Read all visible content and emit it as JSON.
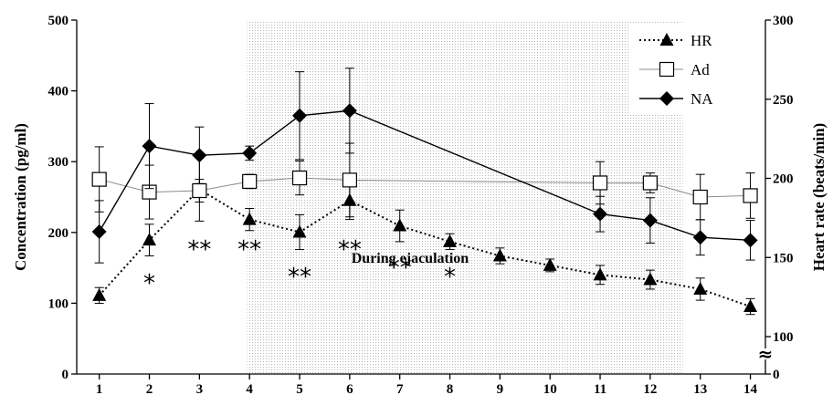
{
  "chart_data": {
    "type": "line",
    "x": [
      1,
      2,
      3,
      4,
      5,
      6,
      11,
      12,
      13,
      14
    ],
    "hr_x": [
      1,
      2,
      3,
      4,
      5,
      6,
      7,
      8,
      9,
      10,
      11,
      12,
      13,
      14
    ],
    "xlim": [
      0.55,
      14.3
    ],
    "xticks": [
      1,
      2,
      3,
      4,
      5,
      6,
      7,
      8,
      9,
      10,
      11,
      12,
      13,
      14
    ],
    "left_axis": {
      "label": "Concentration (pg/ml)",
      "ylim": [
        0,
        500
      ],
      "ticks": [
        "0",
        "100",
        "200",
        "300",
        "400",
        "500"
      ]
    },
    "right_axis": {
      "label": "Heart rate (beats/min)",
      "ticks": [
        "0",
        "100",
        "150",
        "200",
        "250",
        "300"
      ],
      "break_symbol": "≈"
    },
    "shaded_region": {
      "x_start": 3.95,
      "x_end": 12.65,
      "label": "During ejaculation"
    },
    "series": [
      {
        "name": "HR",
        "axis": "right",
        "style": "dotted",
        "marker": "triangle",
        "x": [
          1,
          2,
          3,
          4,
          5,
          6,
          7,
          8,
          9,
          10,
          11,
          12,
          13,
          14
        ],
        "values": [
          126,
          161,
          193,
          174,
          166,
          186,
          170,
          160,
          151,
          145,
          139,
          136,
          130,
          119
        ],
        "err": [
          5,
          10,
          20,
          7,
          11,
          12,
          10,
          5,
          5,
          4,
          6,
          6,
          7,
          5
        ]
      },
      {
        "name": "Ad",
        "axis": "left",
        "style": "thin-gray",
        "marker": "open-square",
        "x": [
          1,
          2,
          3,
          4,
          5,
          6,
          11,
          12,
          13,
          14
        ],
        "values": [
          275,
          257,
          259,
          272,
          277,
          274,
          270,
          270,
          250,
          252
        ],
        "err": [
          46,
          38,
          16,
          10,
          24,
          52,
          30,
          14,
          32,
          32
        ]
      },
      {
        "name": "NA",
        "axis": "left",
        "style": "solid",
        "marker": "filled-diamond",
        "x": [
          1,
          2,
          3,
          4,
          5,
          6,
          11,
          12,
          13,
          14
        ],
        "values": [
          201,
          322,
          309,
          312,
          365,
          372,
          226,
          217,
          193,
          189
        ],
        "err": [
          44,
          60,
          40,
          10,
          62,
          60,
          25,
          32,
          25,
          28
        ]
      }
    ],
    "significance": [
      {
        "x": 2,
        "text": "*",
        "row": "high"
      },
      {
        "x": 3,
        "text": "**",
        "row": "mid"
      },
      {
        "x": 4,
        "text": "**",
        "row": "mid"
      },
      {
        "x": 5,
        "text": "**",
        "row": "low"
      },
      {
        "x": 6,
        "text": "**",
        "row": "mid"
      },
      {
        "x": 7,
        "text": "**",
        "row": "low"
      },
      {
        "x": 8,
        "text": "*",
        "row": "low"
      }
    ],
    "legend": {
      "position": "top-right",
      "entries": [
        "HR",
        "Ad",
        "NA"
      ]
    },
    "colors": {
      "ad_line": "#8c8c8c",
      "shade": "#bdbdbd",
      "ink": "#000000"
    }
  }
}
